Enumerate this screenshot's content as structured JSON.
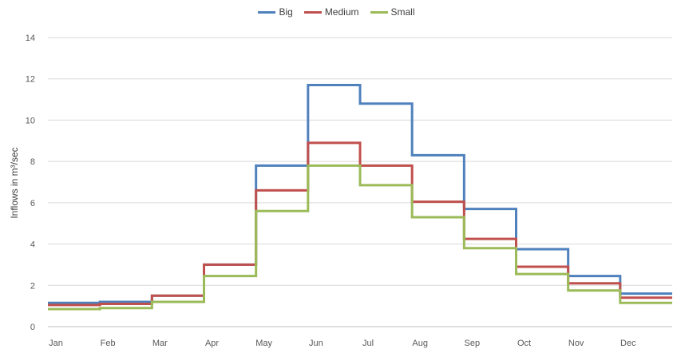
{
  "chart_data": {
    "type": "line",
    "step": true,
    "ylabel": "Inflows in m³/sec",
    "xlabel": "",
    "title": "",
    "ylim": [
      0,
      14
    ],
    "yticks": [
      0,
      2,
      4,
      6,
      8,
      10,
      12,
      14
    ],
    "categories": [
      "Jan",
      "Feb",
      "Mar",
      "Apr",
      "May",
      "Jun",
      "Jul",
      "Aug",
      "Sep",
      "Oct",
      "Nov",
      "Dec"
    ],
    "grid": "horizontal",
    "legend_position": "top",
    "series": [
      {
        "name": "Big",
        "color": "#4F81BD",
        "values": [
          1.15,
          1.2,
          1.5,
          3.0,
          7.8,
          11.7,
          10.8,
          8.3,
          5.7,
          3.75,
          2.45,
          1.6
        ]
      },
      {
        "name": "Medium",
        "color": "#C0504D",
        "values": [
          1.05,
          1.1,
          1.5,
          3.0,
          6.6,
          8.9,
          7.8,
          6.05,
          4.25,
          2.9,
          2.1,
          1.4
        ]
      },
      {
        "name": "Small",
        "color": "#9BBB59",
        "values": [
          0.85,
          0.9,
          1.2,
          2.45,
          5.6,
          7.8,
          6.85,
          5.3,
          3.8,
          2.55,
          1.75,
          1.15
        ]
      }
    ]
  }
}
